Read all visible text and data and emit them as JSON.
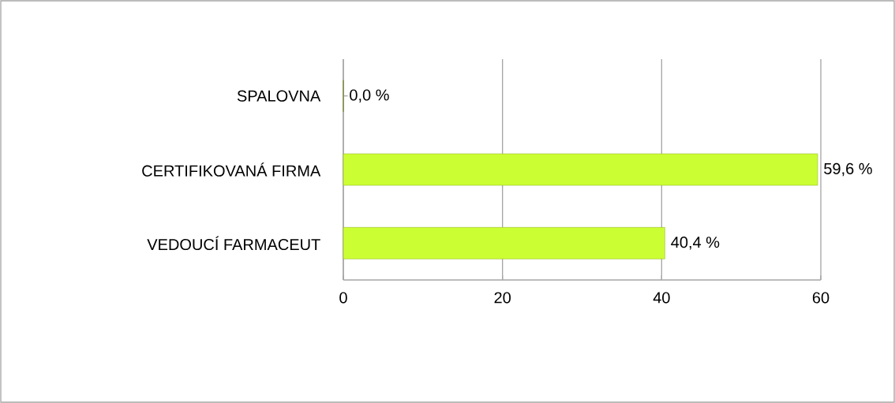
{
  "chart_data": {
    "type": "bar",
    "orientation": "horizontal",
    "categories": [
      "SPALOVNA",
      "CERTIFIKOVANÁ FIRMA",
      "VEDOUCÍ FARMACEUT"
    ],
    "values": [
      0.0,
      59.6,
      40.4
    ],
    "value_labels": [
      "0,0 %",
      "59,6 %",
      "40,4 %"
    ],
    "colors": [
      "#99bb11",
      "#ccff33",
      "#ccff33"
    ],
    "xlim": [
      0,
      60
    ],
    "xticks": [
      0,
      20,
      40,
      60
    ],
    "grid": "x"
  }
}
